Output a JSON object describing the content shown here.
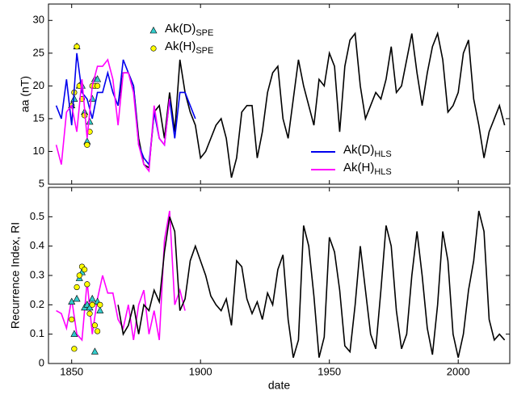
{
  "chart_data": [
    {
      "type": "line",
      "ylabel": "aa  (nT)",
      "xlim": [
        1841,
        2020
      ],
      "ylim": [
        5,
        32.5
      ],
      "xticks": [
        1850,
        1900,
        1950,
        2000
      ],
      "show_xtick_labels": false,
      "yticks": [
        5,
        10,
        15,
        20,
        25,
        30
      ],
      "series": [
        {
          "name": "Ak(D)",
          "subscript": "SPE",
          "color": "#33cccc",
          "marker": "triangle",
          "legend": "upper center",
          "x": [
            1850,
            1851,
            1852,
            1853,
            1854,
            1855,
            1856,
            1857,
            1858,
            1859,
            1860
          ],
          "values": [
            17,
            18,
            26,
            20,
            20,
            16,
            11.5,
            14.5,
            18,
            21,
            21
          ]
        },
        {
          "name": "Ak(H)",
          "subscript": "SPE",
          "color": "#ffff00",
          "marker": "circle",
          "legend": "upper center",
          "x": [
            1850,
            1851,
            1852,
            1853,
            1854,
            1855,
            1856,
            1857,
            1858,
            1859,
            1860
          ],
          "values": [
            17,
            19,
            26,
            20,
            18,
            15.5,
            11,
            13,
            20,
            20,
            20
          ]
        },
        {
          "color": "#000000",
          "x": [
            1868,
            1870,
            1872,
            1874,
            1876,
            1878,
            1880,
            1882,
            1884,
            1886,
            1888,
            1890,
            1892,
            1894,
            1896,
            1898,
            1900,
            1902,
            1904,
            1906,
            1908,
            1910,
            1912,
            1914,
            1916,
            1918,
            1920,
            1922,
            1924,
            1926,
            1928,
            1930,
            1932,
            1934,
            1936,
            1938,
            1940,
            1942,
            1944,
            1946,
            1948,
            1950,
            1952,
            1954,
            1956,
            1958,
            1960,
            1962,
            1964,
            1966,
            1968,
            1970,
            1972,
            1974,
            1976,
            1978,
            1980,
            1982,
            1984,
            1986,
            1988,
            1990,
            1992,
            1994,
            1996,
            1998,
            2000,
            2002,
            2004,
            2006,
            2008,
            2010,
            2012,
            2014,
            2016,
            2018
          ],
          "values": [
            17,
            22,
            22,
            20,
            12,
            8,
            7.5,
            16,
            17,
            12,
            19,
            13,
            24,
            19,
            16,
            14,
            9,
            10,
            12,
            14,
            15,
            12,
            6,
            9,
            16,
            17,
            17,
            9,
            13,
            19,
            22,
            23,
            15,
            12,
            18,
            24,
            20,
            17,
            14,
            21,
            20,
            25,
            23,
            13,
            23,
            27,
            28,
            20,
            15,
            17,
            19,
            18,
            21,
            26,
            19,
            20,
            24,
            28,
            22,
            17,
            22,
            26,
            28,
            24,
            16,
            17,
            19,
            25,
            27,
            18,
            14,
            9,
            13,
            15,
            17,
            14
          ]
        },
        {
          "name": "Ak(D)",
          "subscript": "HLS",
          "color": "#0000ee",
          "legend": "lower right",
          "x": [
            1844,
            1846,
            1848,
            1850,
            1852,
            1854,
            1856,
            1858,
            1860,
            1862,
            1864,
            1866,
            1868,
            1870,
            1872,
            1874,
            1876,
            1878,
            1880,
            1882,
            1884,
            1886,
            1888,
            1890,
            1892,
            1894,
            1896,
            1898
          ],
          "values": [
            17,
            15,
            21,
            14,
            25,
            19,
            18,
            15,
            19,
            19,
            22,
            19,
            17,
            24,
            22,
            20,
            11,
            9,
            8,
            16,
            12,
            11,
            18,
            12,
            19,
            19,
            17,
            15
          ]
        },
        {
          "name": "Ak(H)",
          "subscript": "HLS",
          "color": "#ff00ff",
          "legend": "lower right",
          "x": [
            1844,
            1846,
            1848,
            1850,
            1852,
            1854,
            1856,
            1858,
            1860,
            1862,
            1864,
            1866,
            1868,
            1870,
            1872,
            1874,
            1876,
            1878,
            1880,
            1882,
            1884,
            1886,
            1888
          ],
          "values": [
            11,
            8,
            16,
            17,
            13,
            21,
            12,
            20,
            23,
            23,
            24,
            21,
            14,
            22,
            22,
            19,
            11,
            8,
            7,
            17,
            12,
            11,
            18
          ]
        }
      ]
    },
    {
      "type": "line",
      "ylabel": "Recurrence Index, RI",
      "xlabel": "date",
      "xlim": [
        1841,
        2020
      ],
      "ylim": [
        0,
        0.6
      ],
      "xticks": [
        1850,
        1900,
        1950,
        2000
      ],
      "show_xtick_labels": true,
      "yticks": [
        0,
        0.1,
        0.2,
        0.3,
        0.4,
        0.5
      ],
      "series": [
        {
          "color": "#ff00ff",
          "x": [
            1844,
            1846,
            1848,
            1850,
            1852,
            1854,
            1856,
            1858,
            1860,
            1862,
            1864,
            1866,
            1868,
            1870,
            1872,
            1874,
            1876,
            1878,
            1880,
            1882,
            1884,
            1886,
            1888,
            1890,
            1892,
            1894
          ],
          "values": [
            0.18,
            0.17,
            0.12,
            0.22,
            0.1,
            0.08,
            0.28,
            0.1,
            0.22,
            0.3,
            0.24,
            0.24,
            0.15,
            0.12,
            0.2,
            0.08,
            0.2,
            0.25,
            0.1,
            0.18,
            0.08,
            0.42,
            0.52,
            0.2,
            0.25,
            0.18
          ]
        },
        {
          "color": "#000000",
          "x": [
            1868,
            1870,
            1872,
            1874,
            1876,
            1878,
            1880,
            1882,
            1884,
            1886,
            1888,
            1890,
            1892,
            1894,
            1896,
            1898,
            1900,
            1902,
            1904,
            1906,
            1908,
            1910,
            1912,
            1914,
            1916,
            1918,
            1920,
            1922,
            1924,
            1926,
            1928,
            1930,
            1932,
            1934,
            1936,
            1938,
            1940,
            1942,
            1944,
            1946,
            1948,
            1950,
            1952,
            1954,
            1956,
            1958,
            1960,
            1962,
            1964,
            1966,
            1968,
            1970,
            1972,
            1974,
            1976,
            1978,
            1980,
            1982,
            1984,
            1986,
            1988,
            1990,
            1992,
            1994,
            1996,
            1998,
            2000,
            2002,
            2004,
            2006,
            2008,
            2010,
            2012,
            2014,
            2016,
            2018
          ],
          "values": [
            0.2,
            0.1,
            0.13,
            0.2,
            0.1,
            0.2,
            0.18,
            0.25,
            0.21,
            0.38,
            0.5,
            0.45,
            0.18,
            0.22,
            0.35,
            0.4,
            0.35,
            0.3,
            0.23,
            0.2,
            0.18,
            0.22,
            0.13,
            0.35,
            0.33,
            0.22,
            0.17,
            0.21,
            0.15,
            0.24,
            0.2,
            0.32,
            0.37,
            0.15,
            0.02,
            0.08,
            0.47,
            0.4,
            0.23,
            0.02,
            0.09,
            0.43,
            0.38,
            0.25,
            0.06,
            0.04,
            0.2,
            0.4,
            0.25,
            0.1,
            0.05,
            0.25,
            0.47,
            0.4,
            0.18,
            0.05,
            0.1,
            0.3,
            0.45,
            0.3,
            0.12,
            0.03,
            0.2,
            0.45,
            0.35,
            0.1,
            0.02,
            0.1,
            0.25,
            0.35,
            0.52,
            0.45,
            0.15,
            0.08,
            0.1,
            0.08
          ]
        },
        {
          "color": "#33cccc",
          "marker": "triangle",
          "x": [
            1850,
            1851,
            1852,
            1853,
            1854,
            1855,
            1856,
            1857,
            1858,
            1859,
            1860,
            1861
          ],
          "values": [
            0.21,
            0.1,
            0.22,
            0.29,
            0.31,
            0.19,
            0.2,
            0.19,
            0.22,
            0.04,
            0.21,
            0.18
          ]
        },
        {
          "color": "#ffff00",
          "marker": "circle",
          "x": [
            1850,
            1851,
            1852,
            1853,
            1854,
            1855,
            1856,
            1857,
            1858,
            1859,
            1860,
            1861
          ],
          "values": [
            0.15,
            0.05,
            0.26,
            0.3,
            0.33,
            0.32,
            0.27,
            0.17,
            0.2,
            0.13,
            0.11,
            0.2
          ]
        }
      ]
    }
  ]
}
